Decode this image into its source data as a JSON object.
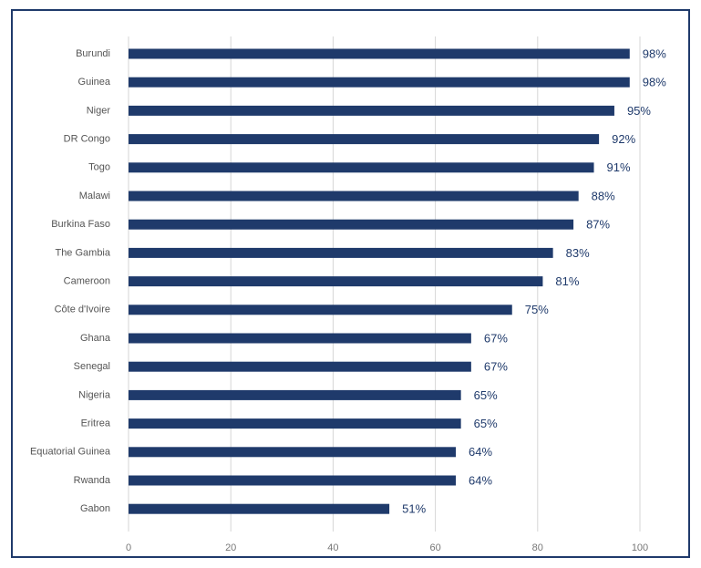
{
  "chart_data": {
    "type": "bar",
    "orientation": "horizontal",
    "categories": [
      "Burundi",
      "Guinea",
      "Niger",
      "DR Congo",
      "Togo",
      "Malawi",
      "Burkina Faso",
      "The Gambia",
      "Cameroon",
      "Côte d'Ivoire",
      "Ghana",
      "Senegal",
      "Nigeria",
      "Eritrea",
      "Equatorial Guinea",
      "Rwanda",
      "Gabon"
    ],
    "values": [
      98,
      98,
      95,
      92,
      91,
      88,
      87,
      83,
      81,
      75,
      67,
      67,
      65,
      65,
      64,
      64,
      51
    ],
    "value_labels": [
      "98%",
      "98%",
      "95%",
      "92%",
      "91%",
      "88%",
      "87%",
      "83%",
      "81%",
      "75%",
      "67%",
      "67%",
      "65%",
      "65%",
      "64%",
      "64%",
      "51%"
    ],
    "xlim": [
      0,
      100
    ],
    "xticks": [
      "0",
      "20",
      "40",
      "60",
      "80",
      "100"
    ],
    "grid": true,
    "colors": {
      "bar": "#1f3a6b",
      "border": "#1f3a6b"
    }
  }
}
